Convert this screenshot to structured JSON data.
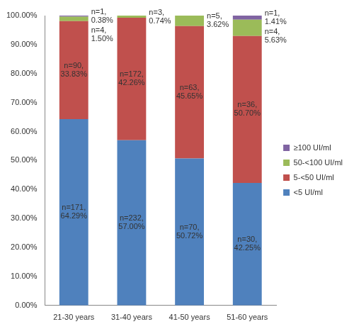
{
  "chart_data": {
    "type": "bar",
    "stacked": true,
    "categories": [
      "21-30 years",
      "31-40 years",
      "41-50 years",
      "51-60 years"
    ],
    "series": [
      {
        "name": "<5 UI/ml",
        "color": "#4F81BD",
        "values": [
          64.29,
          57.0,
          50.72,
          42.25
        ],
        "value_labels": [
          "n=171, 64.29%",
          "n=232, 57.00%",
          "n=70, 50.72%",
          "n=30, 42.25%"
        ]
      },
      {
        "name": "5-<50 UI/ml",
        "color": "#C0504D",
        "values": [
          33.83,
          42.26,
          45.65,
          50.7
        ],
        "value_labels": [
          "n=90, 33.83%",
          "n=172, 42.26%",
          "n=63, 45.65%",
          "n=36, 50.70%"
        ]
      },
      {
        "name": "50-<100 UI/ml",
        "color": "#9BBB59",
        "values": [
          1.5,
          0.74,
          3.62,
          5.63
        ],
        "value_labels": [
          "n=4, 1.50%",
          "n=3, 0.74%",
          "n=5, 3.62%",
          "n=4, 5.63%"
        ]
      },
      {
        "name": "≥100 UI/ml",
        "color": "#8064A2",
        "values": [
          0.38,
          null,
          null,
          1.41
        ],
        "value_labels": [
          "n=1, 0.38%",
          null,
          null,
          "n=1, 1.41%"
        ]
      }
    ],
    "ylim": [
      0,
      100
    ],
    "yticks": [
      {
        "value": 0,
        "label": "0.00%"
      },
      {
        "value": 10,
        "label": "10.00%"
      },
      {
        "value": 20,
        "label": "20.00%"
      },
      {
        "value": 30,
        "label": "30.00%"
      },
      {
        "value": 40,
        "label": "40.00%"
      },
      {
        "value": 50,
        "label": "50.00%"
      },
      {
        "value": 60,
        "label": "60.00%"
      },
      {
        "value": 70,
        "label": "70.00%"
      },
      {
        "value": 80,
        "label": "80.00%"
      },
      {
        "value": 90,
        "label": "90.00%"
      },
      {
        "value": 100,
        "label": "100.00%"
      }
    ],
    "grid": false,
    "legend": "right",
    "data_labels": true
  }
}
